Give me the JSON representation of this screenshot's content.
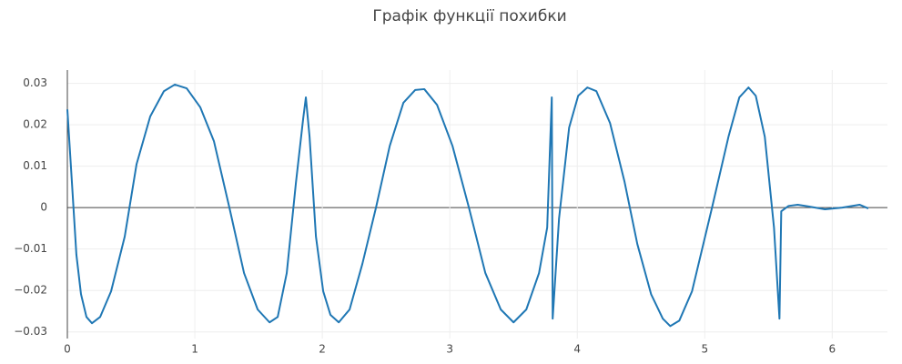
{
  "chart_data": {
    "type": "line",
    "title": "Графік функції похибки",
    "x": [
      0,
      0.036,
      0.071,
      0.107,
      0.15,
      0.193,
      0.257,
      0.343,
      0.45,
      0.543,
      0.65,
      0.757,
      0.843,
      0.936,
      1.043,
      1.15,
      1.271,
      1.386,
      1.493,
      1.586,
      1.65,
      1.721,
      1.793,
      1.85,
      1.871,
      1.9,
      1.95,
      2.007,
      2.064,
      2.129,
      2.214,
      2.314,
      2.421,
      2.529,
      2.636,
      2.729,
      2.8,
      2.9,
      3.021,
      3.15,
      3.279,
      3.4,
      3.5,
      3.6,
      3.7,
      3.764,
      3.8,
      3.807,
      3.857,
      3.936,
      4.007,
      4.079,
      4.15,
      4.257,
      4.371,
      4.471,
      4.579,
      4.671,
      4.729,
      4.8,
      4.9,
      5.057,
      5.186,
      5.271,
      5.343,
      5.4,
      5.471,
      5.543,
      5.586,
      5.6,
      5.657,
      5.729,
      5.829,
      5.943,
      6.079,
      6.214,
      6.283
    ],
    "series": [
      {
        "color": "#1f77b4",
        "values": [
          0.0237,
          0.006,
          -0.0114,
          -0.0209,
          -0.0264,
          -0.0279,
          -0.0264,
          -0.0202,
          -0.007,
          0.0105,
          0.022,
          0.0281,
          0.0297,
          0.0288,
          0.0242,
          0.016,
          0,
          -0.0158,
          -0.0246,
          -0.0277,
          -0.0264,
          -0.0158,
          0.006,
          0.0215,
          0.0266,
          0.0171,
          -0.007,
          -0.0202,
          -0.0259,
          -0.0277,
          -0.0246,
          -0.0136,
          0,
          0.0149,
          0.0253,
          0.0284,
          0.0286,
          0.0248,
          0.0149,
          0,
          -0.0158,
          -0.0246,
          -0.0277,
          -0.0246,
          -0.0158,
          -0.0048,
          0.0266,
          -0.0268,
          -0.0026,
          0.0193,
          0.027,
          0.029,
          0.0281,
          0.0204,
          0.0062,
          -0.0088,
          -0.0209,
          -0.0268,
          -0.0286,
          -0.0273,
          -0.0202,
          0,
          0.0171,
          0.0266,
          0.029,
          0.027,
          0.0171,
          -0.0048,
          -0.0268,
          -0.0009,
          0.0004,
          0.0007,
          0.0002,
          -0.0004,
          0,
          0.0007,
          -0.0002
        ]
      }
    ],
    "xlim": [
      0,
      6.283
    ],
    "xticks": [
      0,
      1,
      2,
      3,
      4,
      5,
      6
    ],
    "ylim": [
      -0.0316,
      0.0332
    ],
    "yticks": [
      {
        "value": -0.03,
        "label": "−0.03"
      },
      {
        "value": -0.02,
        "label": "−0.02"
      },
      {
        "value": -0.01,
        "label": "−0.01"
      },
      0,
      0.01,
      0.02,
      0.03
    ],
    "grid": true
  }
}
